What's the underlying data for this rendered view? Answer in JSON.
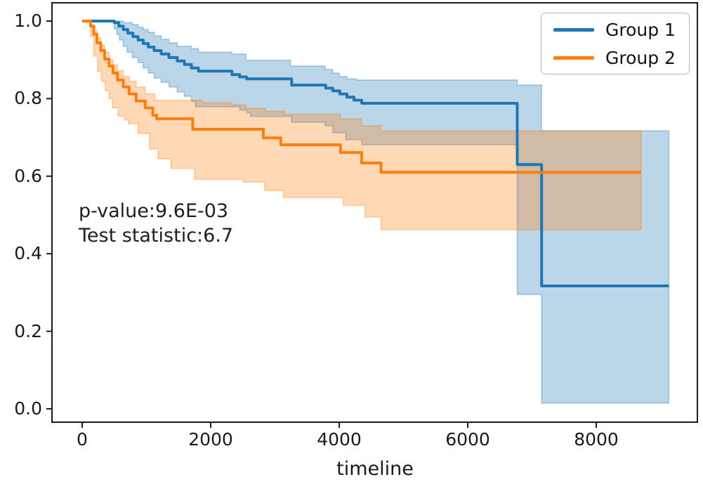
{
  "figure": {
    "background": "#ffffff",
    "text_color": "#1a1a1a"
  },
  "chart_data": {
    "type": "line",
    "chart_kind": "kaplan-meier-step-curves-with-confidence-bands",
    "title": "",
    "xlabel": "timeline",
    "ylabel": "",
    "grid": false,
    "legend_position": "upper-right",
    "xlim": [
      -460,
      9580
    ],
    "ylim": [
      -0.035,
      1.047
    ],
    "x_ticks": [
      {
        "value": 0,
        "label": "0"
      },
      {
        "value": 2000,
        "label": "2000"
      },
      {
        "value": 4000,
        "label": "4000"
      },
      {
        "value": 6000,
        "label": "6000"
      },
      {
        "value": 8000,
        "label": "8000"
      }
    ],
    "y_ticks": [
      {
        "value": 0.0,
        "label": "0.0"
      },
      {
        "value": 0.2,
        "label": "0.2"
      },
      {
        "value": 0.4,
        "label": "0.4"
      },
      {
        "value": 0.6,
        "label": "0.6"
      },
      {
        "value": 0.8,
        "label": "0.8"
      },
      {
        "value": 1.0,
        "label": "1.0"
      }
    ],
    "annotation": {
      "line1": "p-value:9.6E-03",
      "line2": "Test statistic:6.7"
    },
    "series": [
      {
        "name": "Group 1",
        "color": "#1f77b4",
        "band_alpha": 0.3,
        "t_end": 9130,
        "steps": [
          [
            0,
            1.0
          ],
          [
            500,
            0.996
          ],
          [
            570,
            0.987
          ],
          [
            640,
            0.978
          ],
          [
            710,
            0.969
          ],
          [
            790,
            0.96
          ],
          [
            870,
            0.951
          ],
          [
            950,
            0.942
          ],
          [
            1030,
            0.933
          ],
          [
            1120,
            0.924
          ],
          [
            1230,
            0.915
          ],
          [
            1350,
            0.906
          ],
          [
            1480,
            0.897
          ],
          [
            1590,
            0.888
          ],
          [
            1700,
            0.879
          ],
          [
            1810,
            0.871
          ],
          [
            2330,
            0.862
          ],
          [
            2450,
            0.856
          ],
          [
            2560,
            0.851
          ],
          [
            3260,
            0.835
          ],
          [
            3790,
            0.827
          ],
          [
            3900,
            0.82
          ],
          [
            4010,
            0.812
          ],
          [
            4120,
            0.804
          ],
          [
            4230,
            0.796
          ],
          [
            4350,
            0.788
          ],
          [
            6770,
            0.63
          ],
          [
            7150,
            0.317
          ]
        ],
        "ci_upper": [
          [
            0,
            1.0
          ],
          [
            640,
            0.996
          ],
          [
            780,
            0.991
          ],
          [
            870,
            0.984
          ],
          [
            950,
            0.978
          ],
          [
            1030,
            0.971
          ],
          [
            1120,
            0.962
          ],
          [
            1230,
            0.953
          ],
          [
            1350,
            0.944
          ],
          [
            1480,
            0.935
          ],
          [
            1700,
            0.929
          ],
          [
            1810,
            0.92
          ],
          [
            2330,
            0.915
          ],
          [
            2550,
            0.899
          ],
          [
            3240,
            0.884
          ],
          [
            3780,
            0.875
          ],
          [
            3900,
            0.866
          ],
          [
            4000,
            0.857
          ],
          [
            4120,
            0.851
          ],
          [
            4270,
            0.848
          ],
          [
            6770,
            0.835
          ],
          [
            7150,
            0.717
          ]
        ],
        "ci_lower": [
          [
            0,
            1.0
          ],
          [
            500,
            0.98
          ],
          [
            540,
            0.966
          ],
          [
            580,
            0.951
          ],
          [
            640,
            0.935
          ],
          [
            700,
            0.92
          ],
          [
            780,
            0.906
          ],
          [
            870,
            0.893
          ],
          [
            950,
            0.879
          ],
          [
            1030,
            0.866
          ],
          [
            1120,
            0.853
          ],
          [
            1230,
            0.842
          ],
          [
            1350,
            0.83
          ],
          [
            1480,
            0.817
          ],
          [
            1590,
            0.806
          ],
          [
            1700,
            0.793
          ],
          [
            1760,
            0.779
          ],
          [
            2450,
            0.77
          ],
          [
            2560,
            0.763
          ],
          [
            2620,
            0.754
          ],
          [
            3260,
            0.739
          ],
          [
            3780,
            0.73
          ],
          [
            3900,
            0.712
          ],
          [
            4100,
            0.694
          ],
          [
            4350,
            0.681
          ],
          [
            6770,
            0.295
          ],
          [
            7150,
            0.015
          ]
        ]
      },
      {
        "name": "Group 2",
        "color": "#ff7f0e",
        "band_alpha": 0.3,
        "t_end": 8700,
        "steps": [
          [
            0,
            1.0
          ],
          [
            130,
            0.987
          ],
          [
            180,
            0.966
          ],
          [
            230,
            0.944
          ],
          [
            290,
            0.924
          ],
          [
            350,
            0.902
          ],
          [
            420,
            0.884
          ],
          [
            480,
            0.866
          ],
          [
            550,
            0.848
          ],
          [
            640,
            0.83
          ],
          [
            730,
            0.812
          ],
          [
            840,
            0.794
          ],
          [
            980,
            0.776
          ],
          [
            1100,
            0.757
          ],
          [
            1160,
            0.748
          ],
          [
            1720,
            0.721
          ],
          [
            2820,
            0.699
          ],
          [
            3090,
            0.681
          ],
          [
            4020,
            0.661
          ],
          [
            4350,
            0.634
          ],
          [
            4650,
            0.61
          ]
        ],
        "ci_upper": [
          [
            0,
            1.0
          ],
          [
            130,
            0.99
          ],
          [
            180,
            0.975
          ],
          [
            230,
            0.958
          ],
          [
            290,
            0.938
          ],
          [
            350,
            0.92
          ],
          [
            420,
            0.9
          ],
          [
            480,
            0.887
          ],
          [
            550,
            0.872
          ],
          [
            640,
            0.857
          ],
          [
            730,
            0.845
          ],
          [
            840,
            0.83
          ],
          [
            980,
            0.812
          ],
          [
            1130,
            0.796
          ],
          [
            1870,
            0.79
          ],
          [
            2330,
            0.784
          ],
          [
            2550,
            0.775
          ],
          [
            2850,
            0.768
          ],
          [
            3150,
            0.76
          ],
          [
            4020,
            0.748
          ],
          [
            4350,
            0.73
          ],
          [
            4650,
            0.717
          ]
        ],
        "ci_lower": [
          [
            0,
            1.0
          ],
          [
            130,
            0.96
          ],
          [
            180,
            0.91
          ],
          [
            240,
            0.87
          ],
          [
            300,
            0.845
          ],
          [
            360,
            0.82
          ],
          [
            420,
            0.8
          ],
          [
            470,
            0.776
          ],
          [
            560,
            0.755
          ],
          [
            660,
            0.745
          ],
          [
            720,
            0.735
          ],
          [
            870,
            0.71
          ],
          [
            1050,
            0.67
          ],
          [
            1180,
            0.645
          ],
          [
            1380,
            0.62
          ],
          [
            1750,
            0.592
          ],
          [
            2510,
            0.585
          ],
          [
            2840,
            0.563
          ],
          [
            3130,
            0.545
          ],
          [
            4060,
            0.525
          ],
          [
            4400,
            0.495
          ],
          [
            4650,
            0.462
          ]
        ]
      }
    ]
  },
  "legend": {
    "items": [
      {
        "label": "Group 1",
        "color": "#1f77b4"
      },
      {
        "label": "Group 2",
        "color": "#ff7f0e"
      }
    ]
  }
}
